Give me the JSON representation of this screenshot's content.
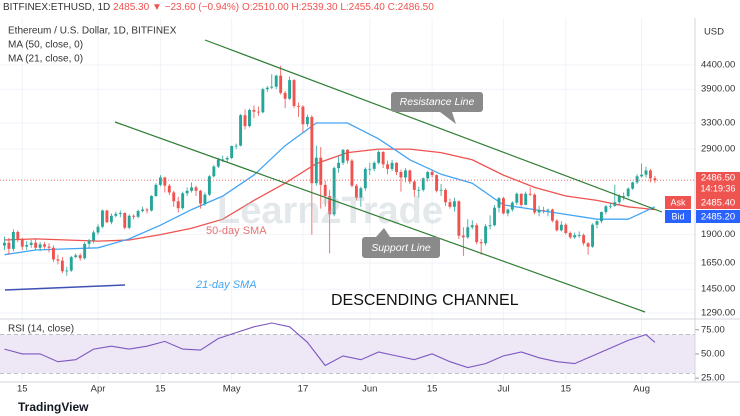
{
  "header": {
    "symbol": "BITFINEX:ETHUSD, 1D",
    "last": "2485.30",
    "change": "▼ −23.60 (−0.94%)",
    "ohlc": "O:2510.00 H:2539.30 L:2455.40 C:2486.50"
  },
  "chart_data": [
    {
      "type": "candlestick",
      "title": "Ethereum / U.S. Dollar, 1D, BITFINEX",
      "currency": "USD",
      "up_color": "#26a69a",
      "down_color": "#ef5350",
      "log_scale": true,
      "grid": true,
      "ylim": [
        1270,
        5280
      ],
      "xlim": [
        -1,
        155
      ],
      "yticks": [
        {
          "value": 1290,
          "label": "1290.00"
        },
        {
          "value": 1450,
          "label": "1450.00"
        },
        {
          "value": 1650,
          "label": "1650.00"
        },
        {
          "value": 1900,
          "label": "1900.00"
        },
        {
          "value": 2900,
          "label": "2900.00"
        },
        {
          "value": 3300,
          "label": "3300.00"
        },
        {
          "value": 3900,
          "label": "3900.00"
        },
        {
          "value": 4400,
          "label": "4400.00"
        }
      ],
      "xticks": [
        {
          "value": 4,
          "label": "15"
        },
        {
          "value": 21,
          "label": "Apr"
        },
        {
          "value": 35,
          "label": "15"
        },
        {
          "value": 51,
          "label": "May"
        },
        {
          "value": 67,
          "label": "17"
        },
        {
          "value": 82,
          "label": "Jun"
        },
        {
          "value": 96,
          "label": "15"
        },
        {
          "value": 112,
          "label": "Jul"
        },
        {
          "value": 126,
          "label": "15"
        },
        {
          "value": 143,
          "label": "Aug"
        }
      ],
      "open": [
        1800,
        1825,
        1770,
        1925,
        1855,
        1790,
        1805,
        1825,
        1780,
        1810,
        1790,
        1780,
        1680,
        1670,
        1585,
        1590,
        1700,
        1715,
        1690,
        1815,
        1845,
        1920,
        1975,
        2140,
        2020,
        2085,
        2105,
        2115,
        1965,
        2085,
        2075,
        2135,
        2150,
        2140,
        2300,
        2430,
        2520,
        2420,
        2340,
        2240,
        2165,
        2330,
        2360,
        2400,
        2360,
        2215,
        2315,
        2535,
        2660,
        2750,
        2755,
        2775,
        2945,
        2950,
        3430,
        3250,
        3520,
        3490,
        3480,
        3900,
        3930,
        3950,
        4170,
        3830,
        3720,
        4080,
        3590,
        3580,
        3280,
        3400,
        2450,
        2780,
        2430,
        2300,
        2100,
        2640,
        2710,
        2890,
        2740,
        2420,
        2280,
        2390,
        2630,
        2630,
        2710,
        2860,
        2690,
        2630,
        2710,
        2590,
        2520,
        2610,
        2470,
        2370,
        2370,
        2510,
        2590,
        2550,
        2360,
        2370,
        2230,
        2180,
        2240,
        1890,
        1875,
        1970,
        1990,
        1830,
        1820,
        1980,
        1990,
        2170,
        2275,
        2110,
        2150,
        2225,
        2325,
        2200,
        2325,
        2315,
        2120,
        2145,
        2140,
        2150,
        2035,
        1940,
        1995,
        1915,
        1875,
        1895,
        1895,
        1820,
        1790,
        1995,
        2030,
        2125,
        2185,
        2190,
        2230,
        2300,
        2300,
        2385,
        2460,
        2535,
        2555,
        2610,
        2510
      ],
      "high": [
        1880,
        1870,
        1950,
        1940,
        1870,
        1840,
        1850,
        1860,
        1830,
        1830,
        1820,
        1800,
        1720,
        1700,
        1620,
        1710,
        1730,
        1730,
        1830,
        1860,
        1940,
        2000,
        2150,
        2150,
        2110,
        2130,
        2140,
        2120,
        2100,
        2100,
        2150,
        2180,
        2170,
        2310,
        2450,
        2550,
        2530,
        2440,
        2360,
        2290,
        2350,
        2400,
        2460,
        2420,
        2370,
        2340,
        2550,
        2680,
        2780,
        2810,
        2800,
        2950,
        2980,
        3450,
        3530,
        3540,
        3600,
        3580,
        3930,
        3960,
        4200,
        4190,
        4380,
        3870,
        4150,
        4100,
        3650,
        3600,
        3440,
        3430,
        2950,
        2930,
        2480,
        2370,
        2660,
        2800,
        2900,
        2900,
        2760,
        2440,
        2410,
        2650,
        2710,
        2730,
        2880,
        2870,
        2740,
        2750,
        2720,
        2620,
        2640,
        2620,
        2490,
        2410,
        2520,
        2600,
        2610,
        2560,
        2440,
        2390,
        2270,
        2280,
        2250,
        1970,
        2050,
        2040,
        2010,
        1860,
        2000,
        2090,
        2200,
        2290,
        2290,
        2160,
        2240,
        2340,
        2330,
        2350,
        2400,
        2330,
        2190,
        2180,
        2160,
        2160,
        2050,
        2030,
        2010,
        1930,
        1920,
        1930,
        1910,
        1830,
        2010,
        2040,
        2130,
        2200,
        2220,
        2430,
        2320,
        2340,
        2400,
        2470,
        2560,
        2700,
        2660,
        2630,
        2539.3
      ],
      "low": [
        1760,
        1720,
        1750,
        1830,
        1760,
        1760,
        1780,
        1760,
        1750,
        1770,
        1740,
        1660,
        1640,
        1570,
        1550,
        1580,
        1690,
        1670,
        1680,
        1780,
        1820,
        1900,
        1960,
        2010,
        2000,
        2070,
        2070,
        1950,
        1950,
        2050,
        2060,
        2120,
        2110,
        2130,
        2290,
        2410,
        2340,
        2310,
        2180,
        2120,
        2150,
        2300,
        2340,
        2300,
        2160,
        2190,
        2300,
        2520,
        2640,
        2720,
        2720,
        2760,
        2900,
        2940,
        3200,
        3230,
        3380,
        3420,
        3460,
        3850,
        3900,
        3900,
        3800,
        3550,
        3700,
        3550,
        3400,
        3150,
        3240,
        1900,
        2420,
        2160,
        2180,
        1730,
        2080,
        2580,
        2680,
        2700,
        2400,
        2250,
        2180,
        2360,
        2550,
        2600,
        2690,
        2640,
        2560,
        2600,
        2550,
        2350,
        2460,
        2440,
        2290,
        2280,
        2350,
        2470,
        2520,
        2340,
        2300,
        2190,
        2160,
        2130,
        1860,
        1710,
        1860,
        1950,
        1810,
        1720,
        1800,
        1950,
        1980,
        2120,
        2100,
        2080,
        2130,
        2200,
        2180,
        2200,
        2300,
        2100,
        2080,
        2110,
        2080,
        2020,
        1930,
        1930,
        1900,
        1860,
        1860,
        1870,
        1800,
        1720,
        1780,
        1960,
        2010,
        2100,
        2160,
        2180,
        2200,
        2250,
        2280,
        2370,
        2440,
        2520,
        2520,
        2460,
        2455.4
      ],
      "close": [
        1825,
        1770,
        1925,
        1855,
        1790,
        1805,
        1825,
        1780,
        1810,
        1790,
        1780,
        1680,
        1670,
        1585,
        1590,
        1700,
        1715,
        1690,
        1815,
        1845,
        1920,
        1975,
        2140,
        2020,
        2085,
        2105,
        2115,
        1965,
        2085,
        2075,
        2135,
        2150,
        2140,
        2300,
        2430,
        2520,
        2420,
        2340,
        2240,
        2165,
        2330,
        2360,
        2400,
        2360,
        2215,
        2315,
        2535,
        2660,
        2750,
        2755,
        2775,
        2945,
        2950,
        3430,
        3250,
        3520,
        3490,
        3480,
        3900,
        3930,
        3950,
        4170,
        3830,
        3720,
        4080,
        3590,
        3580,
        3280,
        3400,
        2450,
        2780,
        2430,
        2300,
        2100,
        2640,
        2710,
        2890,
        2740,
        2420,
        2280,
        2390,
        2630,
        2630,
        2710,
        2860,
        2690,
        2630,
        2710,
        2590,
        2520,
        2610,
        2470,
        2370,
        2370,
        2510,
        2590,
        2550,
        2360,
        2370,
        2230,
        2180,
        2240,
        1890,
        1875,
        1970,
        1990,
        1830,
        1820,
        1980,
        1990,
        2170,
        2275,
        2110,
        2150,
        2225,
        2325,
        2200,
        2325,
        2315,
        2120,
        2145,
        2140,
        2150,
        2035,
        1940,
        1995,
        1915,
        1875,
        1895,
        1895,
        1820,
        1790,
        1995,
        2030,
        2125,
        2185,
        2190,
        2230,
        2300,
        2300,
        2385,
        2460,
        2535,
        2555,
        2610,
        2510,
        2486.5
      ],
      "ma": [
        {
          "name": "MA (50, close, 0)",
          "color": "#ef5350",
          "x": [
            0,
            7,
            14,
            21,
            28,
            35,
            42,
            49,
            56,
            63,
            70,
            77,
            84,
            91,
            98,
            105,
            112,
            119,
            126,
            133,
            140,
            146
          ],
          "values": [
            1850,
            1860,
            1850,
            1840,
            1850,
            1900,
            1960,
            2050,
            2250,
            2450,
            2700,
            2850,
            2900,
            2900,
            2850,
            2750,
            2550,
            2400,
            2300,
            2250,
            2180,
            2150
          ]
        },
        {
          "name": "MA (21, close, 0)",
          "color": "#42a5f5",
          "x": [
            0,
            7,
            14,
            21,
            28,
            35,
            42,
            49,
            56,
            63,
            70,
            77,
            84,
            91,
            98,
            105,
            112,
            119,
            126,
            133,
            140,
            146
          ],
          "values": [
            1720,
            1760,
            1770,
            1780,
            1860,
            1990,
            2150,
            2300,
            2550,
            2950,
            3300,
            3300,
            3050,
            2750,
            2560,
            2450,
            2200,
            2150,
            2100,
            2050,
            2050,
            2180
          ]
        }
      ],
      "price_label": {
        "value": 2486.5,
        "label": "2486.50",
        "countdown": "14:19:36"
      },
      "ask": {
        "name": "Ask",
        "label": "2485.40"
      },
      "bid": {
        "name": "Bid",
        "label": "2485.20"
      },
      "annotations": {
        "resistance": "Resistance Line",
        "support": "Support Line",
        "ma50": "50-day SMA",
        "ma21": "21-day SMA",
        "channel": "DESCENDING CHANNEL"
      },
      "watermark": "Learn2Trade"
    },
    {
      "type": "line",
      "title": "RSI (14, close)",
      "color": "#7e57c2",
      "band": [
        30,
        70
      ],
      "band_color": "#ede7f6",
      "ylim": [
        21,
        83
      ],
      "xlim": [
        -1,
        155
      ],
      "yticks": [
        {
          "value": 25,
          "label": "25.00"
        },
        {
          "value": 50,
          "label": "50.00"
        },
        {
          "value": 75,
          "label": "75.00"
        }
      ],
      "x": [
        0,
        4,
        8,
        12,
        16,
        20,
        24,
        28,
        32,
        36,
        40,
        44,
        48,
        52,
        56,
        60,
        64,
        68,
        72,
        76,
        80,
        84,
        88,
        92,
        96,
        100,
        104,
        108,
        112,
        116,
        120,
        124,
        128,
        132,
        136,
        140,
        144,
        146
      ],
      "values": [
        55,
        50,
        50,
        42,
        44,
        55,
        58,
        55,
        58,
        63,
        55,
        54,
        66,
        72,
        78,
        82,
        78,
        62,
        38,
        48,
        44,
        52,
        48,
        44,
        50,
        42,
        36,
        40,
        48,
        52,
        46,
        42,
        40,
        48,
        56,
        64,
        70,
        62
      ]
    }
  ],
  "footer": {
    "brand": "TradingView"
  }
}
